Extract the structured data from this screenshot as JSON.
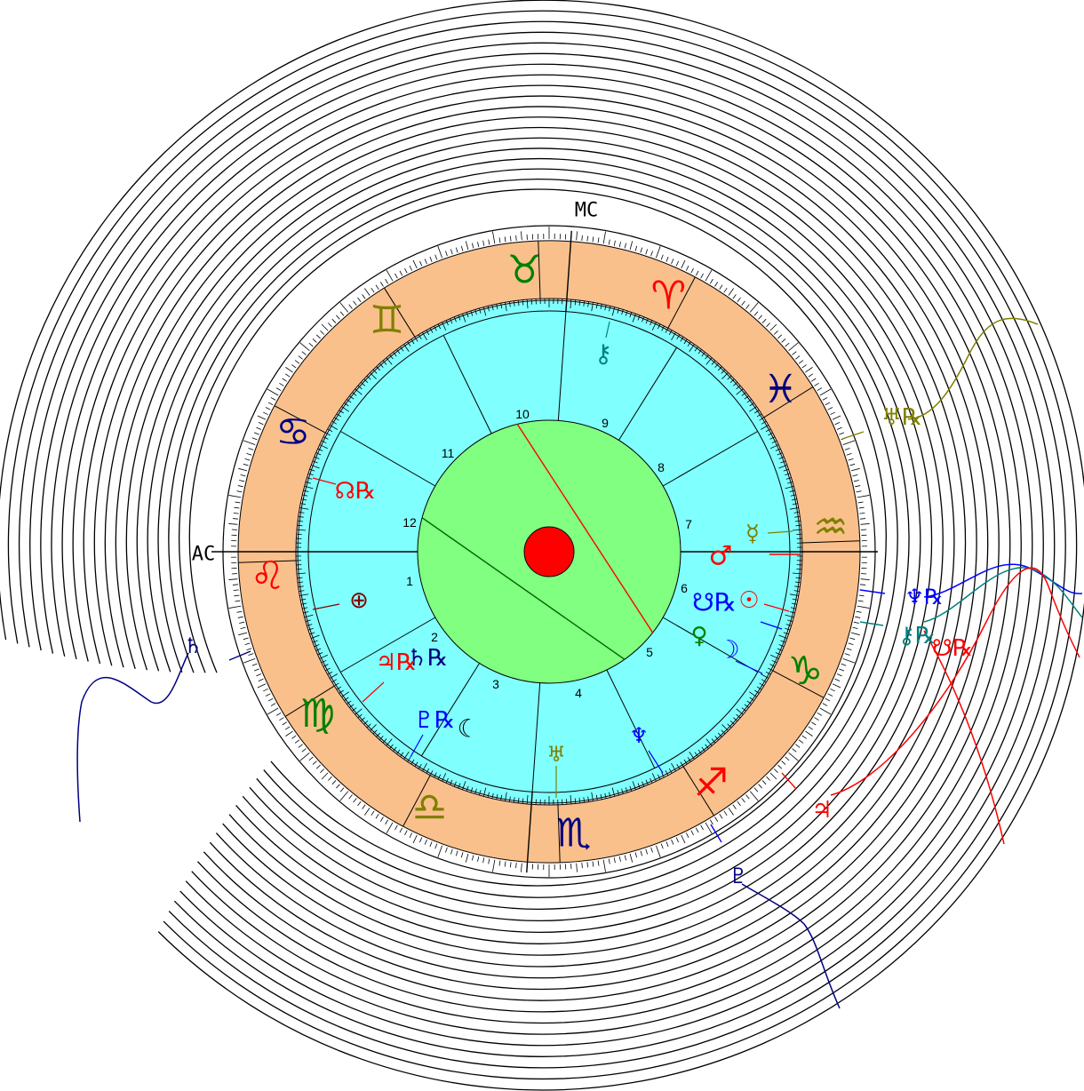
{
  "axes": {
    "ascendant": "AC",
    "midheaven": "MC"
  },
  "zodiac_signs": [
    {
      "name": "aries",
      "symbol": "♈",
      "color": "#ff0000"
    },
    {
      "name": "taurus",
      "symbol": "♉",
      "color": "#008000"
    },
    {
      "name": "gemini",
      "symbol": "♊",
      "color": "#808000"
    },
    {
      "name": "cancer",
      "symbol": "♋",
      "color": "#000080"
    },
    {
      "name": "leo",
      "symbol": "♌",
      "color": "#ff0000"
    },
    {
      "name": "virgo",
      "symbol": "♍",
      "color": "#008000"
    },
    {
      "name": "libra",
      "symbol": "♎",
      "color": "#808000"
    },
    {
      "name": "scorpio",
      "symbol": "♏",
      "color": "#000080"
    },
    {
      "name": "sagittarius",
      "symbol": "♐",
      "color": "#ff0000"
    },
    {
      "name": "capricorn",
      "symbol": "♑",
      "color": "#008000"
    },
    {
      "name": "aquarius",
      "symbol": "♒",
      "color": "#808000"
    },
    {
      "name": "pisces",
      "symbol": "♓",
      "color": "#000080"
    }
  ],
  "houses": [
    "1",
    "2",
    "3",
    "4",
    "5",
    "6",
    "7",
    "8",
    "9",
    "10",
    "11",
    "12"
  ],
  "natal_points": [
    {
      "name": "chiron",
      "symbol": "⚷",
      "color": "#008080"
    },
    {
      "name": "north-node",
      "symbol": "☊℞",
      "color": "#ff0000"
    },
    {
      "name": "part-of-fortune",
      "symbol": "⊕",
      "color": "#800000"
    },
    {
      "name": "saturn",
      "symbol": "♄℞",
      "color": "#000080"
    },
    {
      "name": "jupiter",
      "symbol": "♃℞",
      "color": "#ff0000"
    },
    {
      "name": "pluto",
      "symbol": "♇℞",
      "color": "#0000ff"
    },
    {
      "name": "moon",
      "symbol": "☾",
      "color": "#000000"
    },
    {
      "name": "uranus",
      "symbol": "♅",
      "color": "#808000"
    },
    {
      "name": "neptune",
      "symbol": "♆",
      "color": "#0000ff"
    },
    {
      "name": "venus",
      "symbol": "♀",
      "color": "#008000"
    },
    {
      "name": "moon-2",
      "symbol": "☽",
      "color": "#0000ff"
    },
    {
      "name": "sun",
      "symbol": "☉",
      "color": "#ff0000"
    },
    {
      "name": "south-node",
      "symbol": "☋℞",
      "color": "#0000ff"
    },
    {
      "name": "mars",
      "symbol": "♂",
      "color": "#ff0000"
    },
    {
      "name": "mercury",
      "symbol": "☿",
      "color": "#808000"
    }
  ],
  "transit_points": [
    {
      "name": "transit-uranus",
      "symbol": "♅℞",
      "color": "#808000"
    },
    {
      "name": "transit-neptune",
      "symbol": "♆℞",
      "color": "#0000ff"
    },
    {
      "name": "transit-chiron",
      "symbol": "⚷℞",
      "color": "#008080"
    },
    {
      "name": "transit-node",
      "symbol": "☋℞",
      "color": "#ff0000"
    },
    {
      "name": "transit-saturn",
      "symbol": "♄",
      "color": "#000080"
    },
    {
      "name": "transit-jupiter",
      "symbol": "♃",
      "color": "#ff0000"
    },
    {
      "name": "transit-pluto",
      "symbol": "♇",
      "color": "#000080"
    }
  ],
  "colors": {
    "sign_ring": "#f9c08c",
    "house_ring": "#80ffff",
    "center_disc": "#80ff80",
    "center_dot": "#ff0000",
    "ring_stroke": "#000000"
  }
}
